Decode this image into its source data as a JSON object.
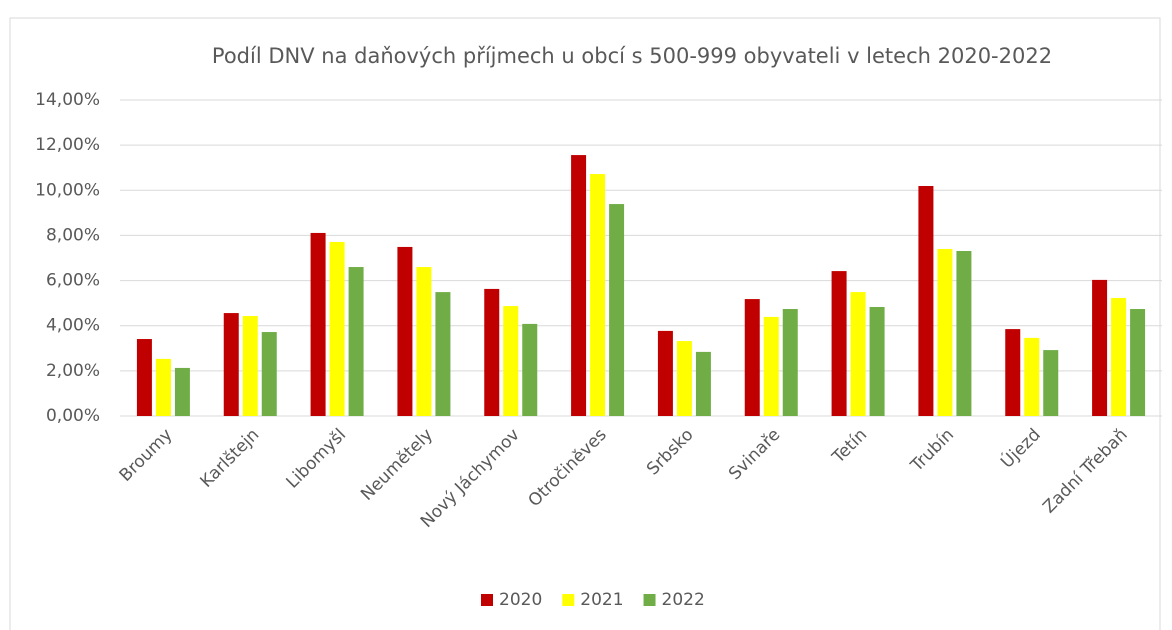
{
  "chart_data": {
    "type": "bar",
    "title": "Podíl DNV na daňových příjmech u obcí s 500-999 obyvateli v letech 2020-2022",
    "categories": [
      "Broumy",
      "Karlštejn",
      "Libomyšl",
      "Neumětely",
      "Nový Jáchymov",
      "Otročiněves",
      "Srbsko",
      "Svinaře",
      "Tetín",
      "Trubín",
      "Újezd",
      "Zadní Třebaň"
    ],
    "series": [
      {
        "name": "2020",
        "color": "#c00000",
        "values": [
          3.41,
          4.56,
          8.11,
          7.49,
          5.63,
          11.56,
          3.77,
          5.18,
          6.42,
          10.19,
          3.85,
          6.03
        ]
      },
      {
        "name": "2021",
        "color": "#ffff00",
        "values": [
          2.53,
          4.43,
          7.71,
          6.6,
          4.87,
          10.72,
          3.32,
          4.39,
          5.49,
          7.4,
          3.46,
          5.23
        ]
      },
      {
        "name": "2022",
        "color": "#70ad47",
        "values": [
          2.13,
          3.72,
          6.6,
          5.49,
          4.08,
          9.39,
          2.84,
          4.74,
          4.83,
          7.31,
          2.92,
          4.74
        ]
      }
    ],
    "ylim": [
      0,
      14
    ],
    "yticks": [
      {
        "value": 0,
        "label": "0,00%"
      },
      {
        "value": 2,
        "label": "2,00%"
      },
      {
        "value": 4,
        "label": "4,00%"
      },
      {
        "value": 6,
        "label": "6,00%"
      },
      {
        "value": 8,
        "label": "8,00%"
      },
      {
        "value": 10,
        "label": "10,00%"
      },
      {
        "value": 12,
        "label": "12,00%"
      },
      {
        "value": 14,
        "label": "14,00%"
      }
    ],
    "grid": true,
    "legend": "bottom"
  }
}
